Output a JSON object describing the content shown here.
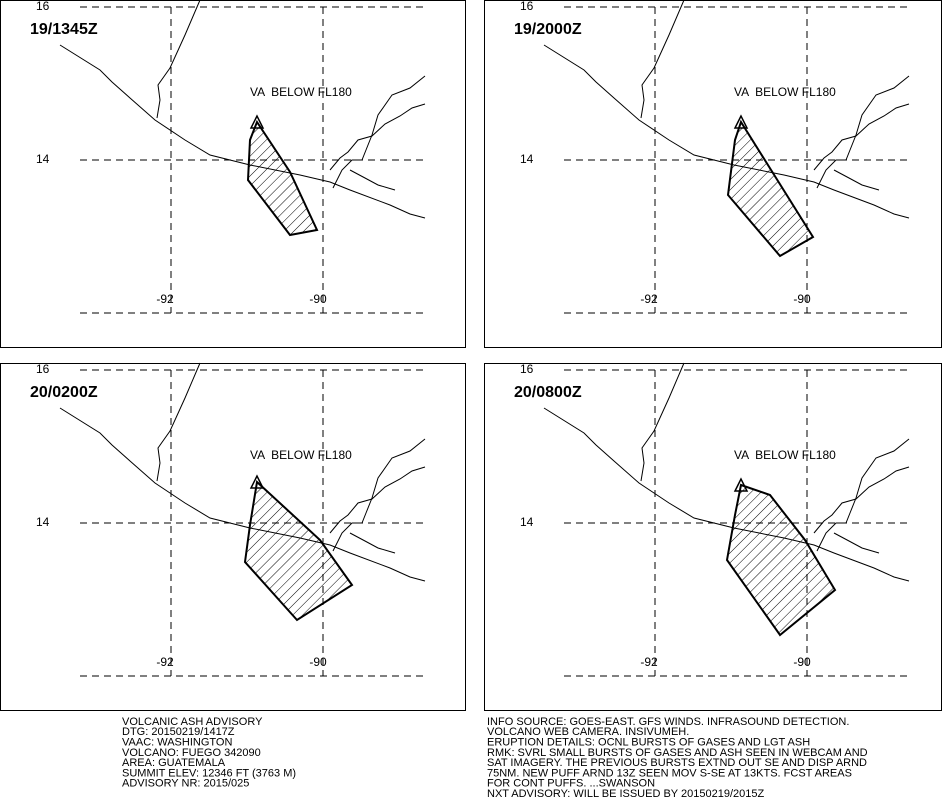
{
  "panels": [
    {
      "time": "19/1345Z",
      "label": "VA  BELOW FL180",
      "lat_labels": [
        "16",
        "14"
      ],
      "lon_labels": [
        "-92",
        "-90"
      ]
    },
    {
      "time": "19/2000Z",
      "label": "VA  BELOW FL180",
      "lat_labels": [
        "16",
        "14"
      ],
      "lon_labels": [
        "-92",
        "-90"
      ]
    },
    {
      "time": "20/0200Z",
      "label": "VA  BELOW FL180",
      "lat_labels": [
        "16",
        "14"
      ],
      "lon_labels": [
        "-92",
        "-90"
      ]
    },
    {
      "time": "20/0800Z",
      "label": "VA  BELOW FL180",
      "lat_labels": [
        "16",
        "14"
      ],
      "lon_labels": [
        "-92",
        "-90"
      ]
    }
  ],
  "advisory": {
    "left": [
      "VOLCANIC ASH ADVISORY",
      "DTG: 20150219/1417Z",
      "VAAC: WASHINGTON",
      "VOLCANO: FUEGO 342090",
      "AREA: GUATEMALA",
      "SUMMIT ELEV: 12346 FT (3763 M)",
      "ADVISORY NR: 2015/025"
    ],
    "right": [
      "INFO SOURCE: GOES-EAST. GFS WINDS. INFRASOUND DETECTION.",
      "VOLCANO WEB CAMERA. INSIVUMEH.",
      "ERUPTION DETAILS: OCNL BURSTS OF GASES AND LGT ASH",
      "RMK: SVRL SMALL BURSTS OF GASES AND ASH SEEN IN WEBCAM AND",
      "SAT IMAGERY. THE PREVIOUS BURSTS EXTND OUT SE AND DISP ARND",
      "75NM. NEW PUFF ARND 13Z SEEN MOV S-SE AT 13KTS. FCST AREAS",
      "FOR CONT PUFFS. ...SWANSON",
      "NXT ADVISORY: WILL BE ISSUED BY 20150219/2015Z"
    ]
  }
}
